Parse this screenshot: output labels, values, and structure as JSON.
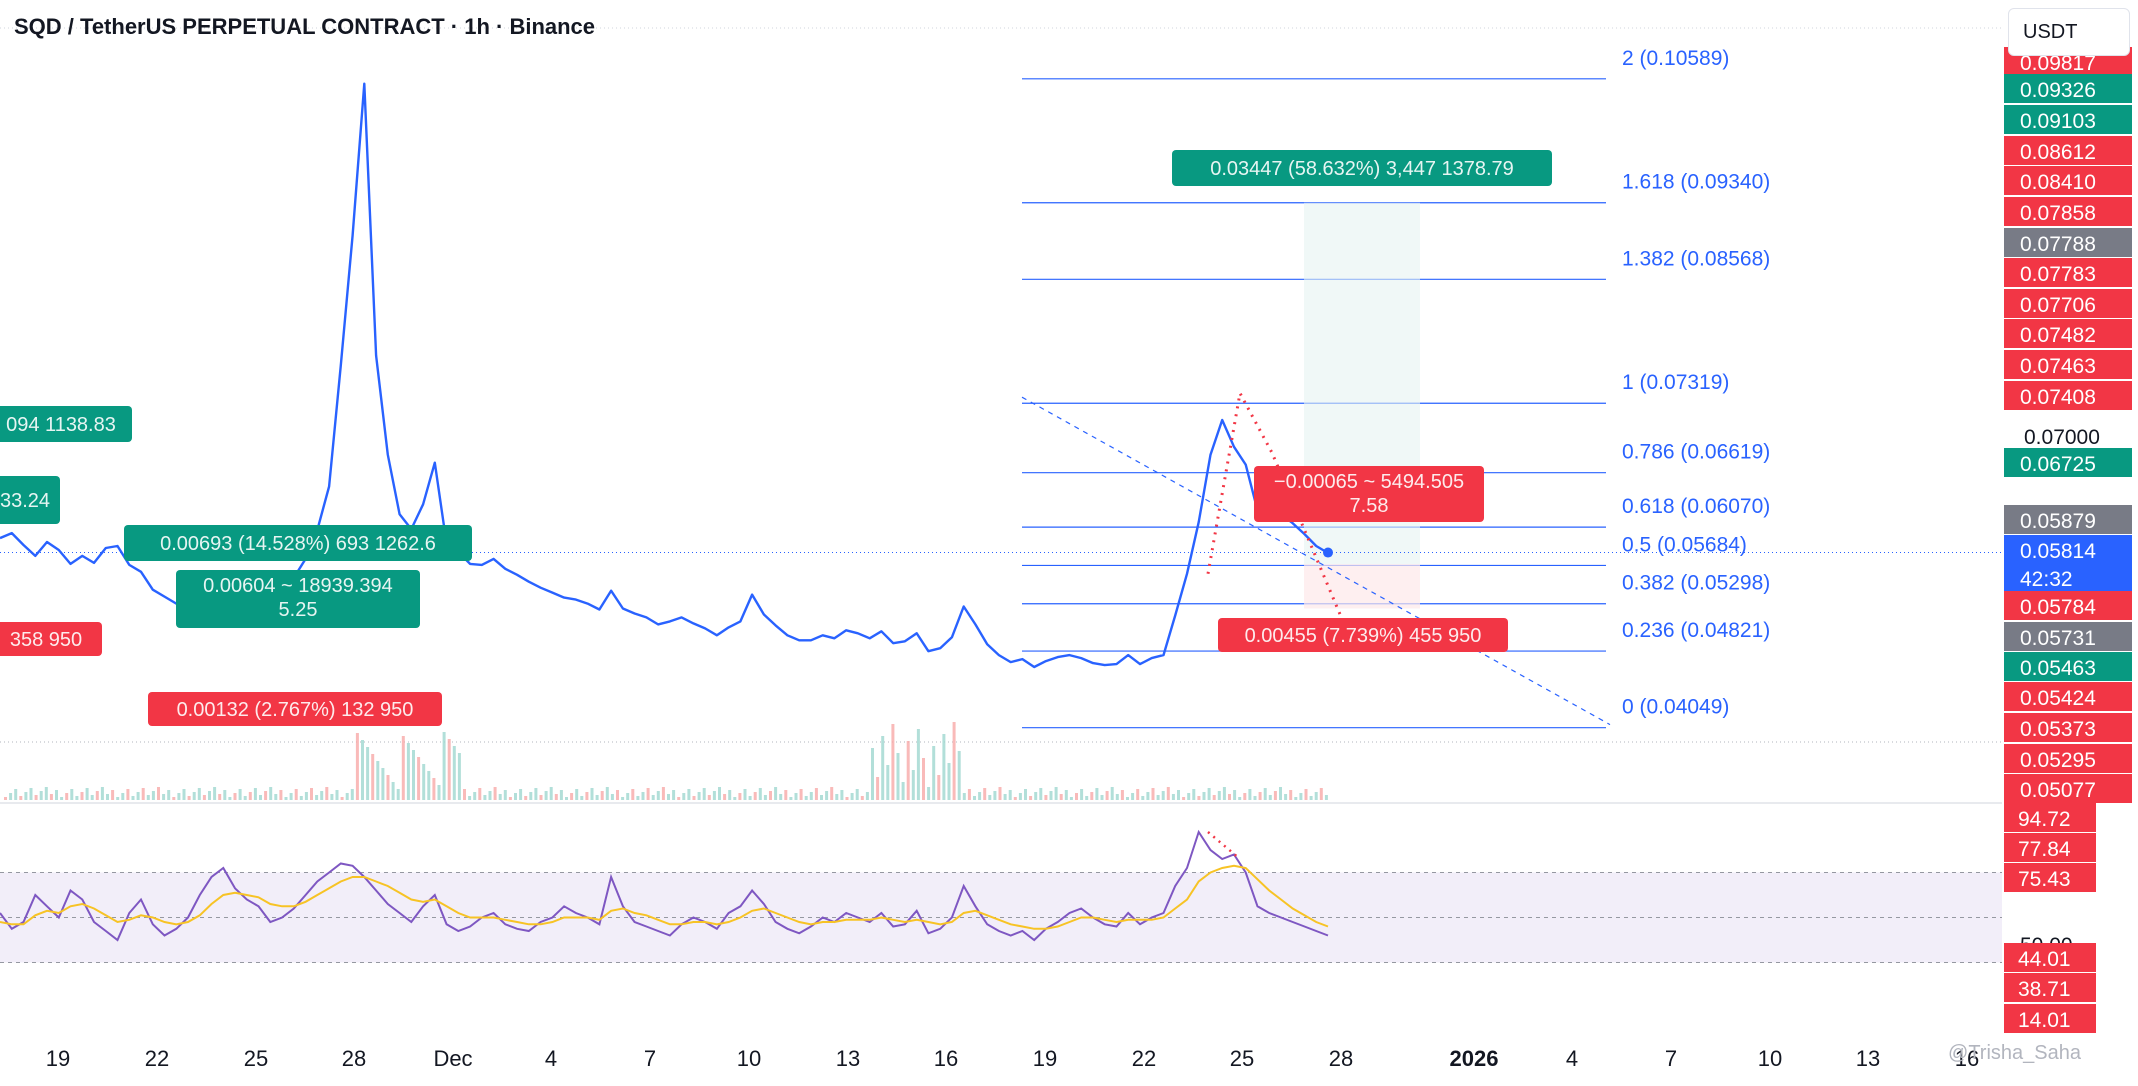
{
  "header": {
    "title": "SQD / TetherUS PERPETUAL CONTRACT · 1h · Binance",
    "currency": "USDT",
    "watermark": "Trisha_Saha"
  },
  "colors": {
    "price_line": "#2962ff",
    "up": "#089981",
    "down": "#f23645",
    "fib_line": "#2962ff",
    "rsi_line": "#7e57c2",
    "rsi_ma": "#f7c325",
    "rsi_band": "#ede7f6",
    "gray_tag": "#787b86"
  },
  "chart_data": [
    {
      "type": "line",
      "title": "SQD / TetherUS PERPETUAL CONTRACT · 1h · Binance",
      "unit": "USDT",
      "x_tick_labels": [
        "19",
        "22",
        "25",
        "28",
        "Dec",
        "4",
        "7",
        "10",
        "13",
        "16",
        "19",
        "22",
        "25",
        "28",
        "2026",
        "4",
        "7",
        "10",
        "13",
        "16"
      ],
      "series": [
        {
          "values": [
            0.0596,
            0.0601,
            0.0589,
            0.0578,
            0.0592,
            0.0584,
            0.057,
            0.0578,
            0.0571,
            0.0586,
            0.0588,
            0.0569,
            0.0562,
            0.0544,
            0.0537,
            0.053,
            0.0528,
            0.0545,
            0.0559,
            0.0547,
            0.0545,
            0.0543,
            0.055,
            0.0556,
            0.0548,
            0.0556,
            0.0575,
            0.0604,
            0.0648,
            0.077,
            0.0901,
            0.1054,
            0.078,
            0.068,
            0.062,
            0.0605,
            0.063,
            0.0672,
            0.059,
            0.0582,
            0.057,
            0.0569,
            0.0575,
            0.0565,
            0.0559,
            0.0552,
            0.0546,
            0.0541,
            0.0536,
            0.0534,
            0.053,
            0.0524,
            0.0543,
            0.0525,
            0.052,
            0.0516,
            0.0509,
            0.0512,
            0.0516,
            0.051,
            0.0505,
            0.0498,
            0.0506,
            0.0512,
            0.0539,
            0.0519,
            0.0508,
            0.0498,
            0.0493,
            0.0493,
            0.0498,
            0.0495,
            0.0503,
            0.05,
            0.0495,
            0.0502,
            0.049,
            0.0492,
            0.05,
            0.0482,
            0.0485,
            0.0496,
            0.0527,
            0.0509,
            0.0489,
            0.0478,
            0.0471,
            0.0474,
            0.0466,
            0.0472,
            0.0476,
            0.0478,
            0.0475,
            0.047,
            0.0468,
            0.0469,
            0.0478,
            0.0469,
            0.0475,
            0.0478,
            0.0518,
            0.056,
            0.0612,
            0.068,
            0.0715,
            0.0688,
            0.067,
            0.0624,
            0.0628,
            0.062,
            0.0611,
            0.06,
            0.0588,
            0.0581
          ]
        }
      ],
      "fibonacci": {
        "levels": [
          {
            "level": "2",
            "value": 0.10589
          },
          {
            "level": "1.618",
            "value": 0.0934
          },
          {
            "level": "1.382",
            "value": 0.08568
          },
          {
            "level": "1",
            "value": 0.07319
          },
          {
            "level": "0.786",
            "value": 0.06619
          },
          {
            "level": "0.618",
            "value": 0.0607
          },
          {
            "level": "0.5",
            "value": 0.05684
          },
          {
            "level": "0.382",
            "value": 0.05298
          },
          {
            "level": "0.236",
            "value": 0.04821
          },
          {
            "level": "0",
            "value": 0.04049
          }
        ]
      },
      "measure_labels": [
        {
          "text": "0.03447 (58.632%) 3,447 1378.79",
          "color": "green"
        },
        {
          "text": "−0.00065 ~ 5494.505",
          "text2": "7.58",
          "color": "red"
        },
        {
          "text": "0.00455 (7.739%) 455 950",
          "color": "red"
        },
        {
          "text": "0.00693 (14.528%) 693 1262.6",
          "color": "green"
        },
        {
          "text": "0.00604 ~ 18939.394",
          "text2": "5.25",
          "color": "green"
        },
        {
          "text": "0.00132 (2.767%) 132 950",
          "color": "red"
        },
        {
          "text": "094 1138.83",
          "color": "green"
        },
        {
          "text": "33.24",
          "color": "green"
        },
        {
          "text": "358 950",
          "color": "red"
        }
      ],
      "price_axis_tags": [
        {
          "text": "0.09817",
          "color": "red"
        },
        {
          "text": "0.09326",
          "color": "green"
        },
        {
          "text": "0.09103",
          "color": "green"
        },
        {
          "text": "0.08612",
          "color": "red"
        },
        {
          "text": "0.08410",
          "color": "red"
        },
        {
          "text": "0.07858",
          "color": "red"
        },
        {
          "text": "0.07788",
          "color": "gray"
        },
        {
          "text": "0.07783",
          "color": "red"
        },
        {
          "text": "0.07706",
          "color": "red"
        },
        {
          "text": "0.07482",
          "color": "red"
        },
        {
          "text": "0.07463",
          "color": "red"
        },
        {
          "text": "0.07408",
          "color": "red"
        },
        {
          "text": "0.07000",
          "color": "plain"
        },
        {
          "text": "0.06725",
          "color": "green"
        },
        {
          "text": "0.05879",
          "color": "gray"
        },
        {
          "text": "0.05814",
          "text2": "42:32",
          "color": "blue"
        },
        {
          "text": "0.05784",
          "color": "red"
        },
        {
          "text": "0.05731",
          "color": "gray"
        },
        {
          "text": "0.05463",
          "color": "green"
        },
        {
          "text": "0.05424",
          "color": "red"
        },
        {
          "text": "0.05373",
          "color": "red"
        },
        {
          "text": "0.05295",
          "color": "red"
        },
        {
          "text": "0.05077",
          "color": "red"
        }
      ],
      "current_price": {
        "value": 0.05814,
        "countdown": "42:32"
      }
    },
    {
      "type": "line",
      "title": "",
      "series": [
        {
          "values": [
            52,
            45,
            48,
            60,
            55,
            50,
            62,
            58,
            48,
            44,
            40,
            52,
            58,
            47,
            42,
            45,
            50,
            60,
            68,
            72,
            63,
            58,
            55,
            48,
            50,
            54,
            60,
            66,
            70,
            74,
            73,
            68,
            62,
            56,
            52,
            48,
            55,
            60,
            47,
            44,
            46,
            50,
            52,
            47,
            45,
            44,
            48,
            50,
            55,
            52,
            50,
            47,
            68,
            55,
            48,
            46,
            44,
            42,
            47,
            50,
            48,
            45,
            52,
            55,
            62,
            56,
            48,
            45,
            43,
            46,
            50,
            48,
            52,
            50,
            48,
            52,
            46,
            47,
            53,
            43,
            45,
            50,
            64,
            55,
            47,
            44,
            42,
            44,
            40,
            45,
            48,
            52,
            54,
            50,
            47,
            46,
            52,
            47,
            50,
            52,
            64,
            72,
            88,
            80,
            76,
            78,
            70,
            55,
            52,
            50,
            48,
            46,
            44,
            42
          ]
        },
        {
          "values": [
            48,
            47,
            47,
            51,
            53,
            52,
            55,
            56,
            54,
            51,
            48,
            49,
            51,
            50,
            48,
            47,
            48,
            51,
            56,
            60,
            61,
            60,
            59,
            56,
            55,
            55,
            57,
            60,
            63,
            66,
            68,
            68,
            66,
            64,
            61,
            58,
            57,
            58,
            55,
            52,
            50,
            50,
            50,
            49,
            48,
            47,
            47,
            48,
            50,
            50,
            50,
            49,
            53,
            54,
            52,
            51,
            49,
            47,
            47,
            48,
            48,
            47,
            48,
            50,
            53,
            54,
            52,
            50,
            48,
            47,
            48,
            48,
            49,
            49,
            49,
            50,
            49,
            48,
            49,
            48,
            47,
            48,
            52,
            53,
            51,
            49,
            47,
            46,
            45,
            45,
            46,
            48,
            50,
            50,
            49,
            48,
            49,
            49,
            49,
            50,
            54,
            58,
            66,
            70,
            72,
            73,
            72,
            67,
            62,
            58,
            54,
            51,
            48,
            46
          ]
        }
      ],
      "ylim": [
        0,
        100
      ],
      "axis_tags": [
        {
          "text": "94.72",
          "color": "red"
        },
        {
          "text": "77.84",
          "color": "red"
        },
        {
          "text": "75.43",
          "color": "red"
        },
        {
          "text": "50.00",
          "color": "plain"
        },
        {
          "text": "44.01",
          "color": "red"
        },
        {
          "text": "38.71",
          "color": "red"
        },
        {
          "text": "14.01",
          "color": "red"
        }
      ]
    }
  ]
}
